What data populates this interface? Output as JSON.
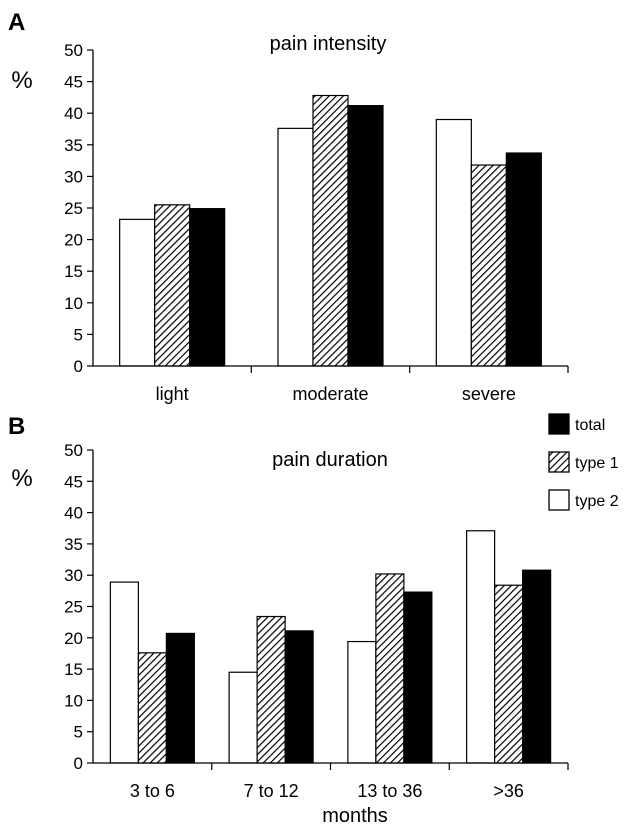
{
  "legend": [
    {
      "name": "total",
      "color": "#000000",
      "pattern": "solid"
    },
    {
      "name": "type 1",
      "color": "#888888",
      "pattern": "hatch"
    },
    {
      "name": "type 2",
      "color": "#ffffff",
      "pattern": "empty"
    }
  ],
  "chart_data": [
    {
      "panel": "A",
      "type": "bar",
      "title": "pain intensity",
      "ylabel": "%",
      "xlabel": "",
      "ylim": [
        0,
        50
      ],
      "yticks": [
        "0",
        "5",
        "10",
        "15",
        "20",
        "25",
        "30",
        "35",
        "40",
        "45",
        "50"
      ],
      "categories": [
        "light",
        "moderate",
        "severe"
      ],
      "series": [
        {
          "name": "type 2",
          "values": [
            23.2,
            37.6,
            39.0
          ]
        },
        {
          "name": "type 1",
          "values": [
            25.5,
            42.8,
            31.8
          ]
        },
        {
          "name": "total",
          "values": [
            24.9,
            41.2,
            33.7
          ]
        }
      ],
      "grid": false
    },
    {
      "panel": "B",
      "type": "bar",
      "title": "pain duration",
      "ylabel": "%",
      "xlabel": "months",
      "ylim": [
        0,
        50
      ],
      "yticks": [
        "0",
        "5",
        "10",
        "15",
        "20",
        "25",
        "30",
        "35",
        "40",
        "45",
        "50"
      ],
      "categories": [
        "3 to 6",
        "7 to 12",
        "13 to 36",
        ">36"
      ],
      "series": [
        {
          "name": "type 2",
          "values": [
            28.9,
            14.5,
            19.4,
            37.1
          ]
        },
        {
          "name": "type 1",
          "values": [
            17.6,
            23.4,
            30.2,
            28.4
          ]
        },
        {
          "name": "total",
          "values": [
            20.7,
            21.1,
            27.3,
            30.8
          ]
        }
      ],
      "legend_position": "top-right",
      "grid": false
    }
  ]
}
